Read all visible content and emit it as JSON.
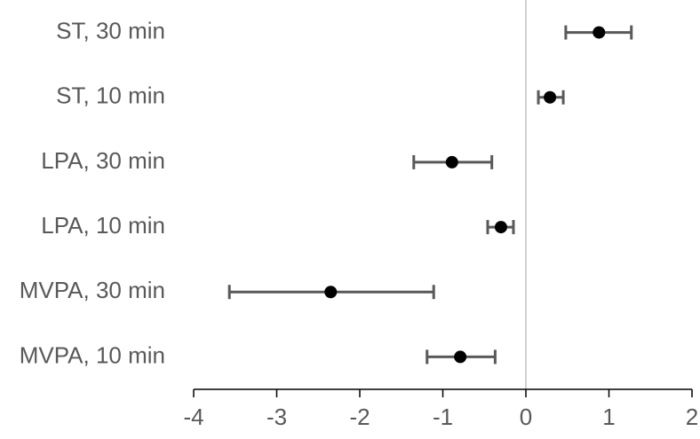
{
  "chart_data": {
    "type": "errorbar",
    "categories": [
      "ST, 30 min",
      "ST, 10 min",
      "LPA, 30 min",
      "LPA, 10 min",
      "MVPA, 30 min",
      "MVPA, 10 min"
    ],
    "values": [
      0.88,
      0.29,
      -0.89,
      -0.3,
      -2.35,
      -0.79
    ],
    "ci_low": [
      0.48,
      0.15,
      -1.35,
      -0.46,
      -3.57,
      -1.19
    ],
    "ci_high": [
      1.27,
      0.45,
      -0.41,
      -0.15,
      -1.11,
      -0.37
    ],
    "color": "#000000",
    "error_color": "#595959",
    "xlim": [
      -4,
      2
    ],
    "xticks": [
      -4,
      -3,
      -2,
      -1,
      0,
      1,
      2
    ]
  }
}
